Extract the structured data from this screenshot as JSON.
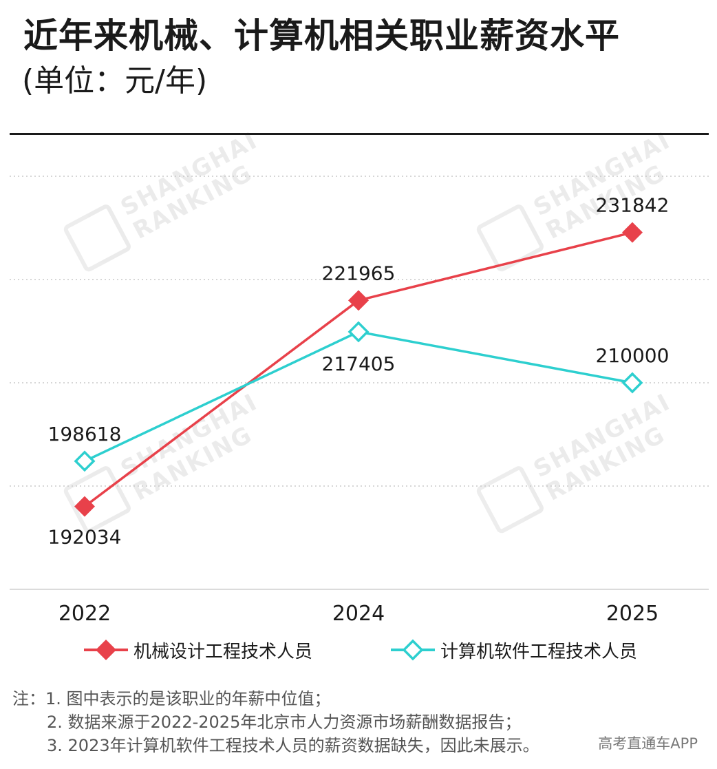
{
  "title": "近年来机械、计算机相关职业薪资水平",
  "subtitle": "(单位：元/年)",
  "watermark": {
    "line1": "SHANGHAI",
    "line2": "RANKING"
  },
  "chart_data": {
    "type": "line",
    "title": "近年来机械、计算机相关职业薪资水平",
    "subtitle": "(单位：元/年)",
    "x": [
      "2022",
      "2024",
      "2025"
    ],
    "ylim": [
      180000,
      240000
    ],
    "grid": true,
    "legend_position": "bottom",
    "series": [
      {
        "name": "机械设计工程技术人员",
        "values": [
          192034,
          221965,
          231842
        ],
        "color": "#e8414a",
        "marker": "diamond-filled"
      },
      {
        "name": "计算机软件工程技术人员",
        "values": [
          198618,
          217405,
          210000
        ],
        "color": "#2dcfcf",
        "marker": "diamond-open"
      }
    ]
  },
  "notes": {
    "prefix": "注：",
    "lines": [
      "1. 图中表示的是该职业的年薪中位值；",
      "2. 数据来源于2022-2025年北京市人力资源市场薪酬数据报告；",
      "3. 2023年计算机软件工程技术人员的薪资数据缺失，因此未展示。"
    ]
  },
  "source": "高考直通车APP"
}
